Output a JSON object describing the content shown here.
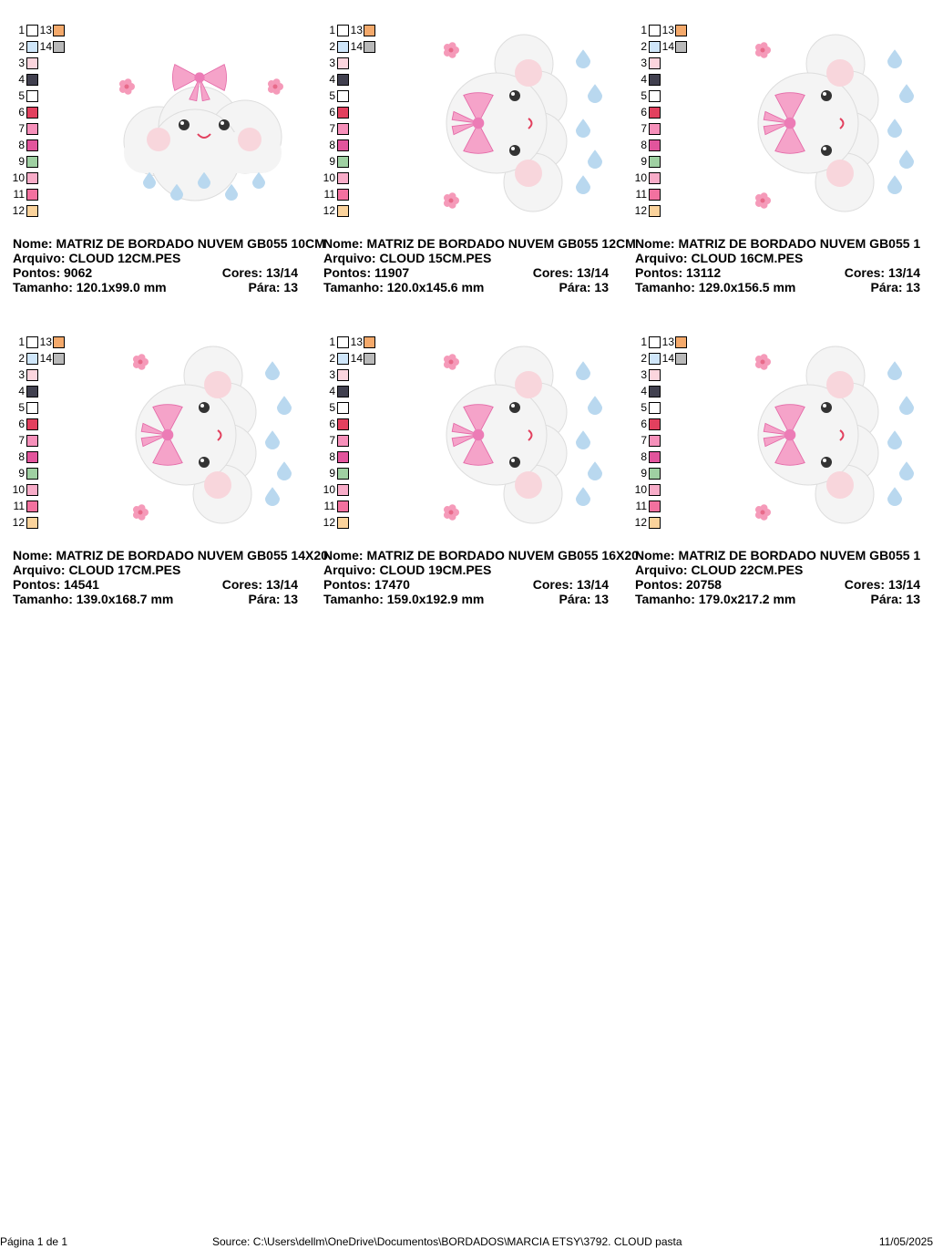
{
  "palette": [
    {
      "number": "1",
      "color": "#ffffff"
    },
    {
      "number": "2",
      "color": "#cfe6fa"
    },
    {
      "number": "3",
      "color": "#fcd5de"
    },
    {
      "number": "4",
      "color": "#41404f"
    },
    {
      "number": "5",
      "color": "#ffffff"
    },
    {
      "number": "6",
      "color": "#e2405e"
    },
    {
      "number": "7",
      "color": "#f690ba"
    },
    {
      "number": "8",
      "color": "#e2559c"
    },
    {
      "number": "9",
      "color": "#9fd0a2"
    },
    {
      "number": "10",
      "color": "#f8acc8"
    },
    {
      "number": "11",
      "color": "#f2719f"
    },
    {
      "number": "12",
      "color": "#fbd39c"
    },
    {
      "number": "13",
      "color": "#f4a96b"
    },
    {
      "number": "14",
      "color": "#b9b9b9"
    }
  ],
  "designs": [
    {
      "name": "Nome: MATRIZ DE BORDADO NUVEM GB055 10CM",
      "file": "Arquivo: CLOUD 12CM.PES",
      "points": "Pontos: 9062",
      "colors": "Cores: 13/14",
      "size": "Tamanho: 120.1x99.0 mm",
      "stops": "Pára: 13"
    },
    {
      "name": "Nome: MATRIZ DE BORDADO NUVEM GB055 12CM",
      "file": "Arquivo: CLOUD 15CM.PES",
      "points": "Pontos: 11907",
      "colors": "Cores: 13/14",
      "size": "Tamanho: 120.0x145.6 mm",
      "stops": "Pára: 13"
    },
    {
      "name": "Nome: MATRIZ DE BORDADO NUVEM GB055 1",
      "file": "Arquivo: CLOUD 16CM.PES",
      "points": "Pontos: 13112",
      "colors": "Cores: 13/14",
      "size": "Tamanho: 129.0x156.5 mm",
      "stops": "Pára: 13"
    },
    {
      "name": "Nome: MATRIZ DE BORDADO NUVEM GB055 14X20",
      "file": "Arquivo: CLOUD 17CM.PES",
      "points": "Pontos: 14541",
      "colors": "Cores: 13/14",
      "size": "Tamanho: 139.0x168.7 mm",
      "stops": "Pára: 13"
    },
    {
      "name": "Nome: MATRIZ DE BORDADO NUVEM GB055 16X20",
      "file": "Arquivo: CLOUD 19CM.PES",
      "points": "Pontos: 17470",
      "colors": "Cores: 13/14",
      "size": "Tamanho: 159.0x192.9 mm",
      "stops": "Pára: 13"
    },
    {
      "name": "Nome: MATRIZ DE BORDADO NUVEM GB055 1",
      "file": "Arquivo: CLOUD 22CM.PES",
      "points": "Pontos: 20758",
      "colors": "Cores: 13/14",
      "size": "Tamanho: 179.0x217.2 mm",
      "stops": "Pára: 13"
    }
  ],
  "footer": {
    "page": "Página 1 de 1",
    "source": "Source: C:\\Users\\dellm\\OneDrive\\Documentos\\BORDADOS\\MARCIA ETSY\\3792. CLOUD pasta",
    "date": "11/05/2025"
  }
}
